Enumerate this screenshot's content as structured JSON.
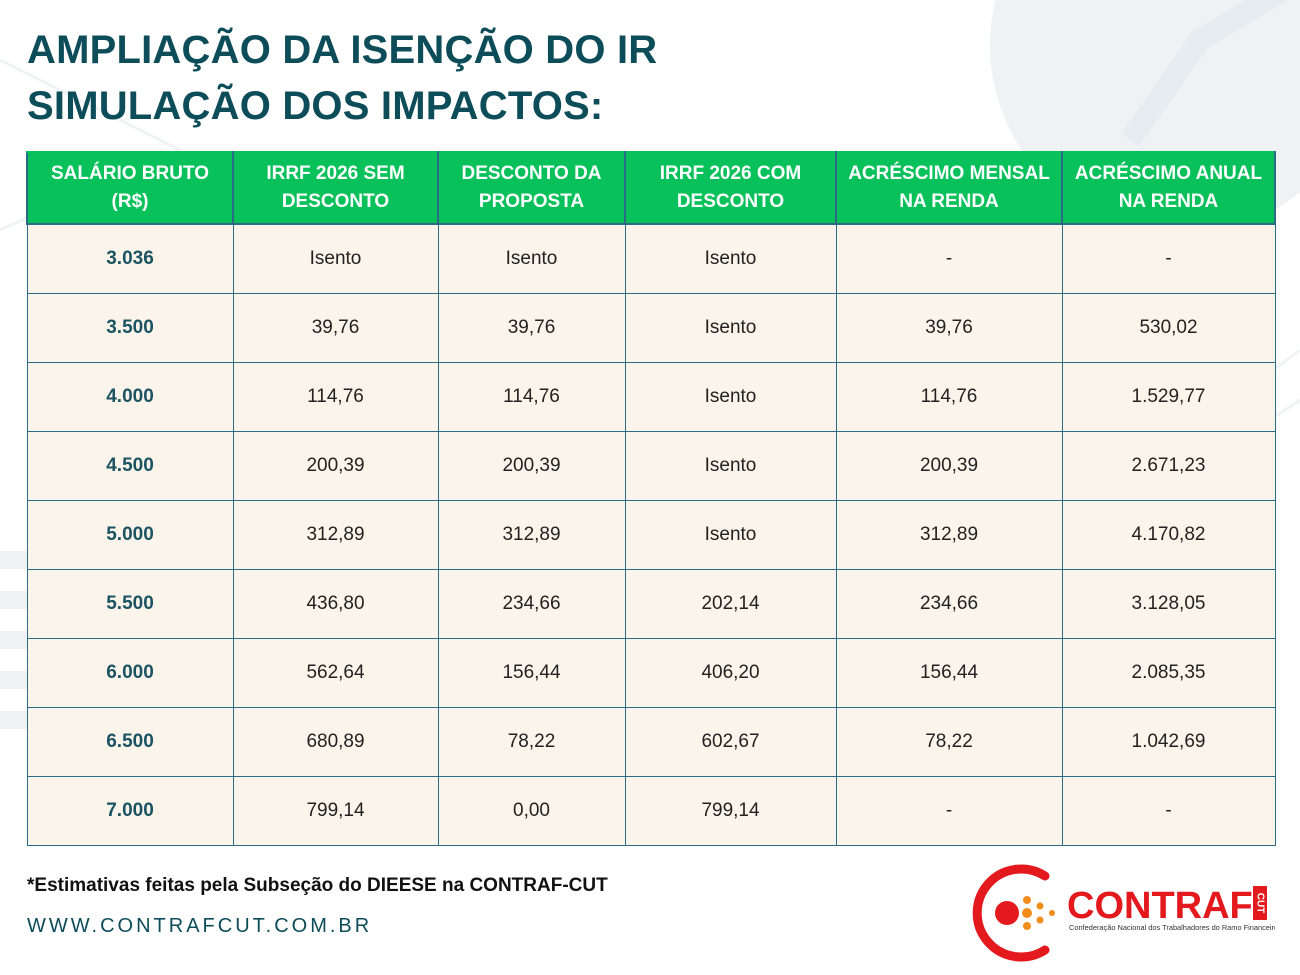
{
  "title": {
    "line1": "AMPLIAÇÃO DA ISENÇÃO DO IR",
    "line2": "SIMULAÇÃO DOS IMPACTOS:"
  },
  "table": {
    "headers": [
      "SALÁRIO BRUTO (R$)",
      "IRRF 2026 SEM DESCONTO",
      "DESCONTO DA PROPOSTA",
      "IRRF 2026 COM DESCONTO",
      "ACRÉSCIMO MENSAL NA RENDA",
      "ACRÉSCIMO ANUAL NA RENDA"
    ],
    "rows": [
      [
        "3.036",
        "Isento",
        "Isento",
        "Isento",
        "-",
        "-"
      ],
      [
        "3.500",
        "39,76",
        "39,76",
        "Isento",
        "39,76",
        "530,02"
      ],
      [
        "4.000",
        "114,76",
        "114,76",
        "Isento",
        "114,76",
        "1.529,77"
      ],
      [
        "4.500",
        "200,39",
        "200,39",
        "Isento",
        "200,39",
        "2.671,23"
      ],
      [
        "5.000",
        "312,89",
        "312,89",
        "Isento",
        "312,89",
        "4.170,82"
      ],
      [
        "5.500",
        "436,80",
        "234,66",
        "202,14",
        "234,66",
        "3.128,05"
      ],
      [
        "6.000",
        "562,64",
        "156,44",
        "406,20",
        "156,44",
        "2.085,35"
      ],
      [
        "6.500",
        "680,89",
        "78,22",
        "602,67",
        "78,22",
        "1.042,69"
      ],
      [
        "7.000",
        "799,14",
        "0,00",
        "799,14",
        "-",
        "-"
      ]
    ]
  },
  "footnote": "*Estimativas feitas pela Subseção do DIEESE na CONTRAF-CUT",
  "website": "WWW.CONTRAFCUT.COM.BR",
  "logo": {
    "name": "CONTRAF",
    "tag": "CUT",
    "subtitle": "Confederação Nacional dos Trabalhadores do Ramo Financeiro"
  },
  "colors": {
    "title": "#0d4d5a",
    "header_bg": "#08c15a",
    "cell_bg": "#fbf4ea",
    "grid": "#2c6b86",
    "logo_red": "#e3191e",
    "logo_orange": "#f28c1b"
  }
}
